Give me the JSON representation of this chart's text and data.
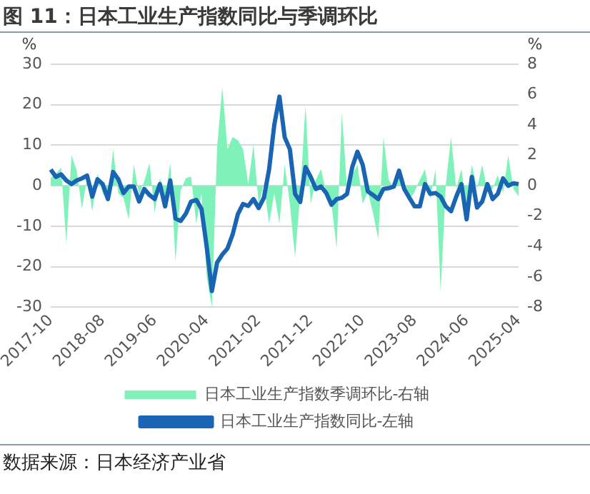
{
  "chart_data": {
    "type": "line",
    "title": "图 11：日本工业生产指数同比与季调环比",
    "ylabel": "%",
    "y2label": "%",
    "categories": [
      "2017-10",
      null,
      null,
      null,
      null,
      null,
      null,
      null,
      null,
      null,
      "2018-08",
      null,
      null,
      null,
      null,
      null,
      null,
      null,
      null,
      null,
      "2019-06",
      null,
      null,
      null,
      null,
      null,
      null,
      null,
      null,
      null,
      "2020-04",
      null,
      null,
      null,
      null,
      null,
      null,
      null,
      null,
      null,
      "2021-02",
      null,
      null,
      null,
      null,
      null,
      null,
      null,
      null,
      null,
      "2021-12",
      null,
      null,
      null,
      null,
      null,
      null,
      null,
      null,
      null,
      "2022-10",
      null,
      null,
      null,
      null,
      null,
      null,
      null,
      null,
      null,
      "2023-08",
      null,
      null,
      null,
      null,
      null,
      null,
      null,
      null,
      null,
      "2024-06",
      null,
      null,
      null,
      null,
      null,
      null,
      null,
      null,
      null,
      "2025-04"
    ],
    "series": [
      {
        "name": "日本工业生产指数季调环比-右轴",
        "type": "area",
        "axis": "y2",
        "color": "#7ef2b8",
        "values": [
          0.5,
          0.8,
          1.2,
          -3.8,
          2,
          1,
          -1.5,
          0.5,
          -1.7,
          0.8,
          -0.5,
          -1,
          2.4,
          -0.5,
          -0.8,
          -2.2,
          1.4,
          -0.6,
          0.3,
          1.5,
          -1.8,
          0.5,
          -0.8,
          1.5,
          -5,
          -0.3,
          0.5,
          0.6,
          -2.5,
          -0.5,
          -6,
          -8,
          2.5,
          6.5,
          2.4,
          3.2,
          3,
          2.4,
          0.1,
          2.7,
          -1.2,
          0.1,
          -2.5,
          -0.5,
          -2.5,
          1.4,
          -1.2,
          -4.7,
          -0.5,
          5.3,
          -1.2,
          0.4,
          1.1,
          -0.5,
          -1.2,
          -4.1,
          4.8,
          -0.2,
          0.7,
          1.4,
          -1.2,
          -0.4,
          -1.8,
          -3.5,
          3.2,
          0.4,
          -0.2,
          1.1,
          0.1,
          -0.9,
          -0.4,
          0.4,
          1.1,
          -0.9,
          1.1,
          -7,
          0.1,
          3.2,
          -0.2,
          1.1,
          -1.5,
          1.4,
          -0.2,
          1.4,
          -0.4,
          -0.2,
          0.7,
          -0.5,
          2,
          -0.2,
          -0.7
        ]
      },
      {
        "name": "日本工业生产指数同比-左轴",
        "color": "#1a64b4",
        "values": [
          4,
          2.2,
          2.8,
          1.3,
          0.4,
          1.3,
          1.8,
          2.5,
          -2.7,
          1.6,
          0.4,
          -3.3,
          3.4,
          1.6,
          -1.8,
          -0.2,
          -0.2,
          -3.9,
          -0.8,
          -2.3,
          -3.3,
          0.4,
          -5.1,
          1.3,
          -8.1,
          -8.7,
          -6.9,
          -3.9,
          -3.5,
          -5.7,
          -15,
          -26,
          -19,
          -17,
          -15.5,
          -12,
          -7,
          -4.5,
          -5,
          -3.3,
          -5.5,
          -3,
          4,
          15,
          22,
          12,
          9,
          -2,
          -4,
          4.6,
          2.2,
          -0.8,
          -0.2,
          -1.8,
          -4.7,
          -3.3,
          -3,
          -2,
          4.6,
          8.4,
          5.2,
          -1.4,
          -2.3,
          -3.3,
          -0.8,
          -0.6,
          -0.2,
          3.7,
          -0.8,
          -3,
          -5.1,
          -5.1,
          0.4,
          -2,
          -1.8,
          -2.7,
          -5.1,
          -6.3,
          -2.7,
          0.4,
          -8.3,
          2.2,
          -5.4,
          -3.9,
          0.4,
          -3.3,
          -2,
          1.8,
          0,
          0.6,
          0.4
        ]
      }
    ],
    "ylim": [
      -30,
      30
    ],
    "yticks": [
      -30,
      -20,
      -10,
      0,
      10,
      20,
      30
    ],
    "y2lim": [
      -8,
      8
    ],
    "y2ticks": [
      -8,
      -6,
      -4,
      -2,
      0,
      2,
      4,
      6,
      8
    ],
    "grid": "y",
    "legend": "bottom",
    "marker": "none",
    "line_style": "solid",
    "annotations": [
      "数据来源：日本经济产业省"
    ]
  }
}
